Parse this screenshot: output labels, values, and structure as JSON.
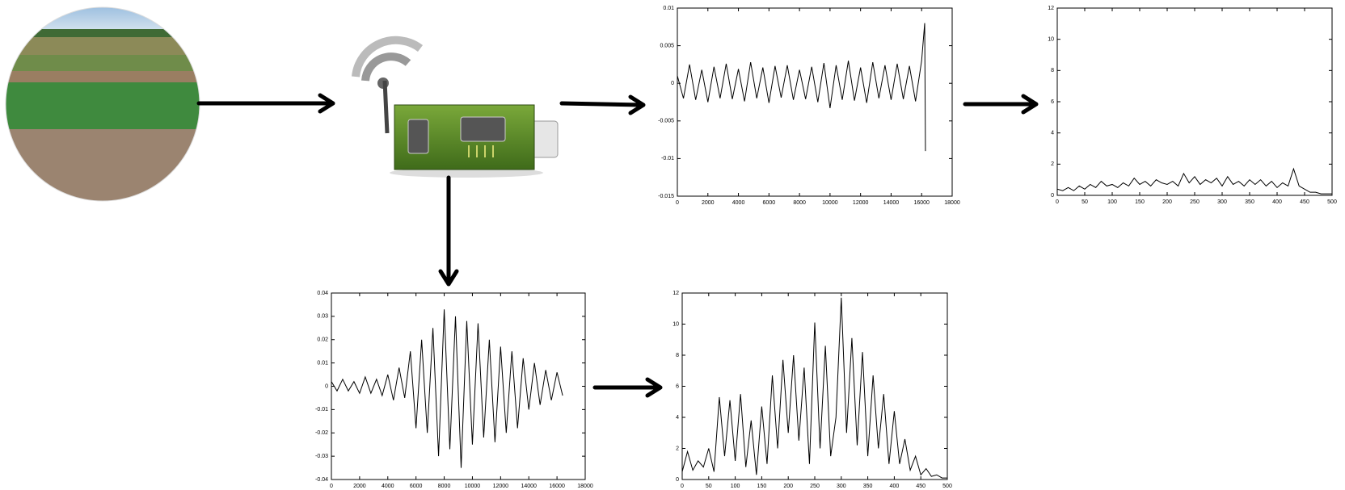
{
  "charts": [
    {
      "type": "line",
      "xlim": [
        0,
        18000
      ],
      "ylim": [
        -0.015,
        0.01
      ],
      "xticks": [
        0,
        2000,
        4000,
        6000,
        8000,
        10000,
        12000,
        14000,
        16000,
        18000
      ],
      "yticks": [
        -0.015,
        -0.01,
        -0.005,
        0,
        0.005,
        0.01
      ],
      "x": [
        0,
        400,
        800,
        1200,
        1600,
        2000,
        2400,
        2800,
        3200,
        3600,
        4000,
        4400,
        4800,
        5200,
        5600,
        6000,
        6400,
        6800,
        7200,
        7600,
        8000,
        8400,
        8800,
        9200,
        9600,
        10000,
        10400,
        10800,
        11200,
        11600,
        12000,
        12400,
        12800,
        13200,
        13600,
        14000,
        14400,
        14800,
        15200,
        15600,
        16000,
        16200,
        16250
      ],
      "values": [
        0.001,
        -0.002,
        0.0025,
        -0.0022,
        0.0018,
        -0.0025,
        0.0022,
        -0.002,
        0.0026,
        -0.0021,
        0.0019,
        -0.0024,
        0.0028,
        -0.002,
        0.0021,
        -0.0026,
        0.0023,
        -0.0019,
        0.0024,
        -0.0022,
        0.0018,
        -0.0021,
        0.0022,
        -0.0025,
        0.0027,
        -0.0033,
        0.0024,
        -0.0022,
        0.003,
        -0.0023,
        0.0021,
        -0.0026,
        0.0028,
        -0.002,
        0.0024,
        -0.0022,
        0.0026,
        -0.0021,
        0.0023,
        -0.0024,
        0.003,
        0.008,
        -0.009
      ]
    },
    {
      "type": "line",
      "xlim": [
        0,
        500
      ],
      "ylim": [
        0,
        12
      ],
      "xticks": [
        0,
        50,
        100,
        150,
        200,
        250,
        300,
        350,
        400,
        450,
        500
      ],
      "yticks": [
        0,
        2,
        4,
        6,
        8,
        10,
        12
      ],
      "x": [
        0,
        10,
        20,
        30,
        40,
        50,
        60,
        70,
        80,
        90,
        100,
        110,
        120,
        130,
        140,
        150,
        160,
        170,
        180,
        190,
        200,
        210,
        220,
        230,
        240,
        250,
        260,
        270,
        280,
        290,
        300,
        310,
        320,
        330,
        340,
        350,
        360,
        370,
        380,
        390,
        400,
        410,
        420,
        430,
        440,
        450,
        460,
        470,
        480,
        490,
        500
      ],
      "values": [
        0.4,
        0.3,
        0.5,
        0.3,
        0.6,
        0.4,
        0.7,
        0.5,
        0.9,
        0.6,
        0.7,
        0.5,
        0.8,
        0.6,
        1.1,
        0.7,
        0.9,
        0.6,
        1.0,
        0.8,
        0.7,
        0.9,
        0.6,
        1.4,
        0.8,
        1.2,
        0.7,
        1.0,
        0.8,
        1.1,
        0.6,
        1.2,
        0.7,
        0.9,
        0.6,
        1.0,
        0.7,
        1.0,
        0.6,
        0.9,
        0.5,
        0.8,
        0.6,
        1.7,
        0.6,
        0.4,
        0.2,
        0.2,
        0.1,
        0.1,
        0.1
      ]
    },
    {
      "type": "line",
      "xlim": [
        0,
        18000
      ],
      "ylim": [
        -0.04,
        0.04
      ],
      "xticks": [
        0,
        2000,
        4000,
        6000,
        8000,
        10000,
        12000,
        14000,
        16000,
        18000
      ],
      "yticks": [
        -0.04,
        -0.03,
        -0.02,
        -0.01,
        0,
        0.01,
        0.02,
        0.03,
        0.04
      ],
      "x": [
        0,
        400,
        800,
        1200,
        1600,
        2000,
        2400,
        2800,
        3200,
        3600,
        4000,
        4400,
        4800,
        5200,
        5600,
        6000,
        6400,
        6800,
        7200,
        7600,
        8000,
        8400,
        8800,
        9200,
        9600,
        10000,
        10400,
        10800,
        11200,
        11600,
        12000,
        12400,
        12800,
        13200,
        13600,
        14000,
        14400,
        14800,
        15200,
        15600,
        16000,
        16400
      ],
      "values": [
        0.002,
        -0.002,
        0.003,
        -0.002,
        0.002,
        -0.003,
        0.004,
        -0.003,
        0.003,
        -0.004,
        0.005,
        -0.006,
        0.008,
        -0.005,
        0.015,
        -0.018,
        0.02,
        -0.02,
        0.025,
        -0.03,
        0.033,
        -0.027,
        0.03,
        -0.035,
        0.028,
        -0.025,
        0.027,
        -0.022,
        0.02,
        -0.024,
        0.017,
        -0.02,
        0.015,
        -0.018,
        0.012,
        -0.01,
        0.01,
        -0.008,
        0.007,
        -0.006,
        0.006,
        -0.004
      ]
    },
    {
      "type": "line",
      "xlim": [
        0,
        500
      ],
      "ylim": [
        0,
        12
      ],
      "xticks": [
        0,
        50,
        100,
        150,
        200,
        250,
        300,
        350,
        400,
        450,
        500
      ],
      "yticks": [
        0,
        2,
        4,
        6,
        8,
        10,
        12
      ],
      "x": [
        0,
        10,
        20,
        30,
        40,
        50,
        60,
        70,
        80,
        90,
        100,
        110,
        120,
        130,
        140,
        150,
        160,
        170,
        180,
        190,
        200,
        210,
        220,
        230,
        240,
        250,
        260,
        270,
        280,
        290,
        300,
        310,
        320,
        330,
        340,
        350,
        360,
        370,
        380,
        390,
        400,
        410,
        420,
        430,
        440,
        450,
        460,
        470,
        480,
        490,
        500
      ],
      "values": [
        0.5,
        1.8,
        0.6,
        1.2,
        0.8,
        2.0,
        0.5,
        5.3,
        1.5,
        5.1,
        1.2,
        5.5,
        0.8,
        3.8,
        0.3,
        4.7,
        1.0,
        6.7,
        2.0,
        7.7,
        3.0,
        8.0,
        2.5,
        7.2,
        1.0,
        10.1,
        2.0,
        8.6,
        1.5,
        4.0,
        11.7,
        3.0,
        9.1,
        2.2,
        8.2,
        1.5,
        6.7,
        2.0,
        5.5,
        1.0,
        4.4,
        1.0,
        2.6,
        0.6,
        1.5,
        0.3,
        0.7,
        0.2,
        0.3,
        0.1,
        0.1
      ]
    }
  ]
}
